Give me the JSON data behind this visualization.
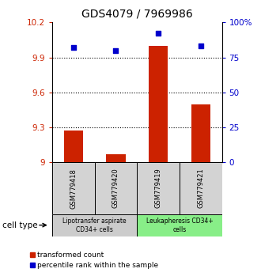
{
  "title": "GDS4079 / 7969986",
  "samples": [
    "GSM779418",
    "GSM779420",
    "GSM779419",
    "GSM779421"
  ],
  "bar_values": [
    9.27,
    9.07,
    10.0,
    9.5
  ],
  "scatter_values": [
    82,
    80,
    92,
    83
  ],
  "ylim_left": [
    9.0,
    10.2
  ],
  "ylim_right": [
    0,
    100
  ],
  "yticks_left": [
    9.0,
    9.3,
    9.6,
    9.9,
    10.2
  ],
  "ytick_labels_left": [
    "9",
    "9.3",
    "9.6",
    "9.9",
    "10.2"
  ],
  "yticks_right": [
    0,
    25,
    50,
    75,
    100
  ],
  "ytick_labels_right": [
    "0",
    "25",
    "50",
    "75",
    "100%"
  ],
  "hlines": [
    9.3,
    9.6,
    9.9
  ],
  "bar_color": "#cc2200",
  "scatter_color": "#0000cc",
  "bar_width": 0.45,
  "cell_type_groups": [
    {
      "label": "Lipotransfer aspirate\nCD34+ cells",
      "start": 0,
      "end": 2,
      "color": "#cccccc"
    },
    {
      "label": "Leukapheresis CD34+\ncells",
      "start": 2,
      "end": 4,
      "color": "#88ee88"
    }
  ],
  "cell_type_label": "cell type",
  "legend_bar_label": "transformed count",
  "legend_scatter_label": "percentile rank within the sample",
  "title_fontsize": 10
}
